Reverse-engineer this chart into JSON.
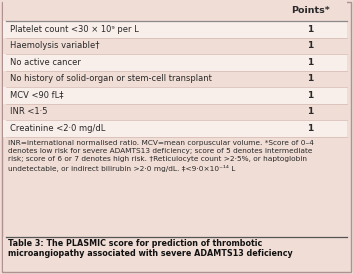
{
  "title": "Table 3: The PLASMIC score for prediction of thrombotic\nmicroangiopathy associated with severe ADAMTS13 deficiency",
  "header_label": "Points*",
  "rows": [
    [
      "Platelet count <30 × 10⁹ per L",
      "1"
    ],
    [
      "Haemolysis variable†",
      "1"
    ],
    [
      "No active cancer",
      "1"
    ],
    [
      "No history of solid-organ or stem-cell transplant",
      "1"
    ],
    [
      "MCV <90 fL‡",
      "1"
    ],
    [
      "INR <1·5",
      "1"
    ],
    [
      "Creatinine <2·0 mg/dL",
      "1"
    ]
  ],
  "footnote_lines": [
    "INR=international normalised ratio. MCV=mean corpuscular volume. *Score of 0–4",
    "denotes low risk for severe ADAMTS13 deficiency; score of 5 denotes intermediate",
    "risk; score of 6 or 7 denotes high risk. †Reticulocyte count >2·5%, or haptoglobin",
    "undetectable, or indirect bilirubin >2·0 mg/dL. ‡<9·0×10⁻¹⁴ L"
  ],
  "bg_color": "#f0ddd6",
  "row_color_odd": "#f0ddd6",
  "row_color_even": "#f8eeea",
  "header_line_color": "#8a8a8a",
  "row_line_color": "#d4b8b0",
  "title_bg": "#f0ddd6",
  "title_line_color": "#555555",
  "text_color": "#2a2a2a",
  "fig_width": 3.53,
  "fig_height": 2.74,
  "dpi": 100
}
